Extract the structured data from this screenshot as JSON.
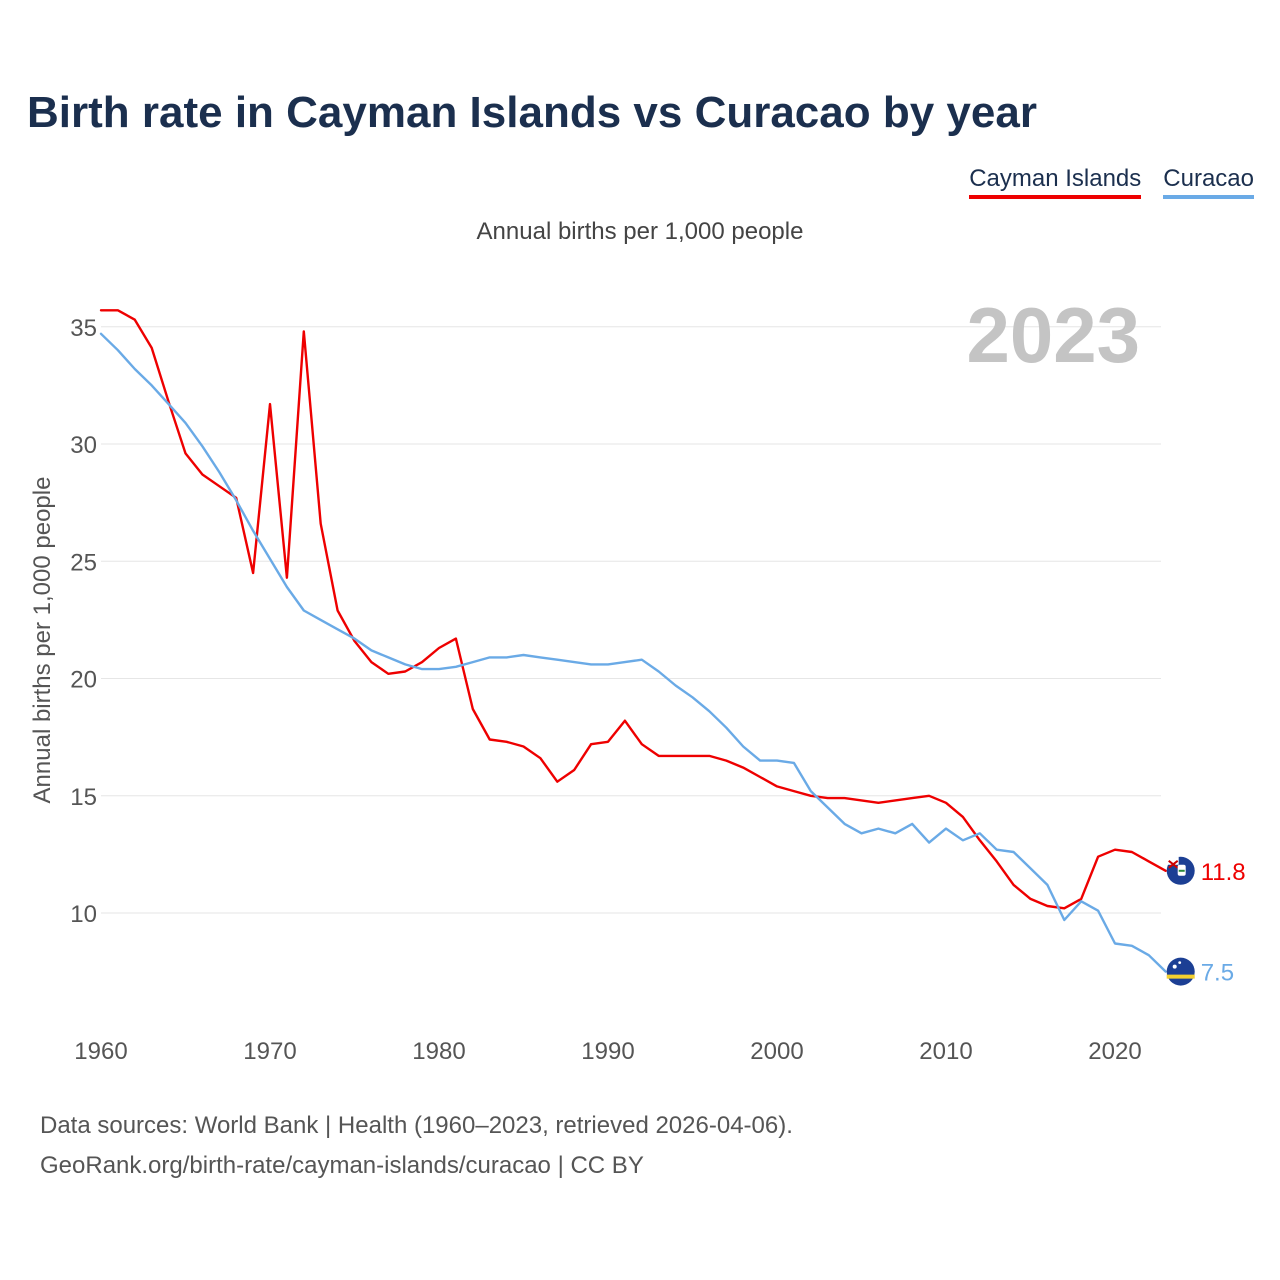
{
  "title": "Birth rate in Cayman Islands vs Curacao by year",
  "legend": [
    {
      "name": "Cayman Islands",
      "color": "#ee0000"
    },
    {
      "name": "Curacao",
      "color": "#6aaae6"
    }
  ],
  "subtitle": "Annual births per 1,000 people",
  "year_badge": "2023",
  "end_labels": {
    "cayman": "11.8",
    "curacao": "7.5"
  },
  "footer": {
    "line1": "Data sources: World Bank | Health (1960–2023, retrieved 2026-04-06).",
    "line2": "GeoRank.org/birth-rate/cayman-islands/curacao | CC BY"
  },
  "chart_data": {
    "type": "line",
    "title": "Birth rate in Cayman Islands vs Curacao by year",
    "xlabel": "",
    "ylabel": "Annual births per 1,000 people",
    "xlim": [
      1960,
      2023
    ],
    "ylim": [
      7,
      36
    ],
    "x_ticks": [
      1960,
      1970,
      1980,
      1990,
      2000,
      2010,
      2020
    ],
    "y_ticks": [
      10,
      15,
      20,
      25,
      30,
      35
    ],
    "grid": true,
    "x": [
      1960,
      1961,
      1962,
      1963,
      1964,
      1965,
      1966,
      1967,
      1968,
      1969,
      1970,
      1971,
      1972,
      1973,
      1974,
      1975,
      1976,
      1977,
      1978,
      1979,
      1980,
      1981,
      1982,
      1983,
      1984,
      1985,
      1986,
      1987,
      1988,
      1989,
      1990,
      1991,
      1992,
      1993,
      1994,
      1995,
      1996,
      1997,
      1998,
      1999,
      2000,
      2001,
      2002,
      2003,
      2004,
      2005,
      2006,
      2007,
      2008,
      2009,
      2010,
      2011,
      2012,
      2013,
      2014,
      2015,
      2016,
      2017,
      2018,
      2019,
      2020,
      2021,
      2022,
      2023
    ],
    "series": [
      {
        "name": "Cayman Islands",
        "color": "#ee0000",
        "values": [
          35.7,
          35.7,
          35.3,
          34.1,
          31.8,
          29.6,
          28.7,
          28.2,
          27.7,
          24.5,
          31.7,
          24.3,
          34.8,
          26.6,
          22.9,
          21.6,
          20.7,
          20.2,
          20.3,
          20.7,
          21.3,
          21.7,
          18.7,
          17.4,
          17.3,
          17.1,
          16.6,
          15.6,
          16.1,
          17.2,
          17.3,
          18.2,
          17.2,
          16.7,
          16.7,
          16.7,
          16.7,
          16.5,
          16.2,
          15.8,
          15.4,
          15.2,
          15.0,
          14.9,
          14.9,
          14.8,
          14.7,
          14.8,
          14.9,
          15.0,
          14.7,
          14.1,
          13.1,
          12.2,
          11.2,
          10.6,
          10.3,
          10.2,
          10.6,
          12.4,
          12.7,
          12.6,
          12.2,
          11.8
        ]
      },
      {
        "name": "Curacao",
        "color": "#6aaae6",
        "values": [
          34.7,
          34.0,
          33.2,
          32.5,
          31.7,
          30.9,
          29.9,
          28.8,
          27.6,
          26.3,
          25.1,
          23.9,
          22.9,
          22.5,
          22.1,
          21.7,
          21.2,
          20.9,
          20.6,
          20.4,
          20.4,
          20.5,
          20.7,
          20.9,
          20.9,
          21.0,
          20.9,
          20.8,
          20.7,
          20.6,
          20.6,
          20.7,
          20.8,
          20.3,
          19.7,
          19.2,
          18.6,
          17.9,
          17.1,
          16.5,
          16.5,
          16.4,
          15.2,
          14.5,
          13.8,
          13.4,
          13.6,
          13.4,
          13.8,
          13.0,
          13.6,
          13.1,
          13.4,
          12.7,
          12.6,
          11.9,
          11.2,
          9.7,
          10.5,
          10.1,
          8.7,
          8.6,
          8.2,
          7.5
        ]
      }
    ]
  }
}
